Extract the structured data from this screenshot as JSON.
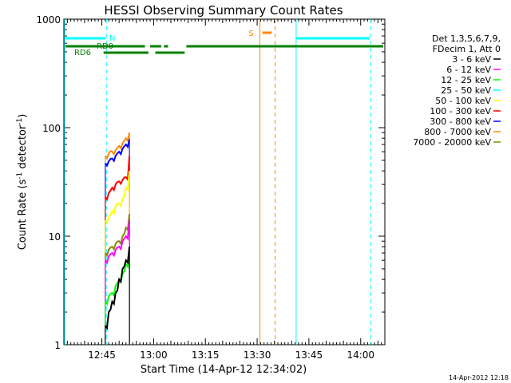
{
  "chart_data": {
    "type": "line",
    "title": "HESSI Observing Summary Count Rates",
    "xlabel": "Start Time (14-Apr-12 12:34:02)",
    "ylabel_main": "Count Rate (s",
    "ylabel_sup1": "-1",
    "ylabel_mid": " detector",
    "ylabel_sup2": "-1",
    "ylabel_end": ")",
    "yscale": "log",
    "ylim": [
      1,
      1000
    ],
    "xlim_minutes": [
      0,
      93
    ],
    "x_ticks": [
      {
        "label": "12:45",
        "t": 11
      },
      {
        "label": "13:00",
        "t": 26
      },
      {
        "label": "13:15",
        "t": 41
      },
      {
        "label": "13:30",
        "t": 56
      },
      {
        "label": "13:45",
        "t": 71
      },
      {
        "label": "14:00",
        "t": 86
      }
    ],
    "y_ticks": [
      {
        "label": "1",
        "v": 1
      },
      {
        "label": "10",
        "v": 10
      },
      {
        "label": "100",
        "v": 100
      },
      {
        "label": "1000",
        "v": 1000
      }
    ],
    "legend": {
      "header": [
        "Det 1,3,5,6,7,9,",
        "FDecim 1, Att 0"
      ],
      "entries": [
        {
          "label": "3 - 6 keV",
          "color": "#000000"
        },
        {
          "label": "6 - 12 keV",
          "color": "#ff00ff"
        },
        {
          "label": "12 - 25 keV",
          "color": "#00ff00"
        },
        {
          "label": "25 - 50 keV",
          "color": "#00ffff"
        },
        {
          "label": "50 - 100 keV",
          "color": "#ffff00"
        },
        {
          "label": "100 - 300 keV",
          "color": "#ff0000"
        },
        {
          "label": "300 - 800 keV",
          "color": "#0000ff"
        },
        {
          "label": "800 - 7000 keV",
          "color": "#ff8800"
        },
        {
          "label": "7000 - 20000 keV",
          "color": "#888800"
        }
      ]
    },
    "annotations": {
      "N": {
        "label": "N",
        "color": "#00ffff"
      },
      "RD0": {
        "label": "RD0",
        "color": "#008000"
      },
      "RD6": {
        "label": "RD6",
        "color": "#008000"
      },
      "S": {
        "label": "S",
        "color": "#ff8800"
      }
    },
    "series": [
      {
        "color": "#ff8800",
        "x": [
          12,
          13,
          14,
          15,
          16,
          17,
          18,
          19
        ],
        "y": [
          55,
          58,
          60,
          62,
          68,
          72,
          80,
          90
        ]
      },
      {
        "color": "#0000ff",
        "x": [
          12,
          13,
          14,
          15,
          16,
          17,
          18,
          19
        ],
        "y": [
          47,
          49,
          52,
          55,
          60,
          64,
          70,
          78
        ]
      },
      {
        "color": "#ff0000",
        "x": [
          12,
          13,
          14,
          15,
          16,
          17,
          18,
          19
        ],
        "y": [
          23,
          25,
          28,
          30,
          32,
          33,
          35,
          55
        ]
      },
      {
        "color": "#ffff00",
        "x": [
          12,
          13,
          14,
          15,
          16,
          17,
          18,
          19
        ],
        "y": [
          14,
          15,
          17,
          19,
          20,
          22,
          28,
          40
        ]
      },
      {
        "color": "#888800",
        "x": [
          12,
          13,
          14,
          15,
          16,
          17,
          18,
          19
        ],
        "y": [
          7,
          7.5,
          8,
          8.5,
          9,
          10,
          12,
          16
        ]
      },
      {
        "color": "#ff00ff",
        "x": [
          12,
          13,
          14,
          15,
          16,
          17,
          18,
          19
        ],
        "y": [
          6,
          6.5,
          7,
          7.5,
          8,
          9,
          10,
          14
        ]
      },
      {
        "color": "#00ff00",
        "x": [
          12,
          13,
          14,
          15,
          16,
          17,
          18,
          19
        ],
        "y": [
          2.5,
          2.8,
          3,
          3.5,
          4,
          4.5,
          5.5,
          7
        ]
      },
      {
        "color": "#000000",
        "x": [
          12,
          13,
          14,
          15,
          16,
          17,
          18,
          19
        ],
        "y": [
          1.5,
          2,
          2.5,
          3,
          4,
          5,
          6,
          8
        ]
      }
    ],
    "footer_date": "14-Apr-2012 12:18"
  }
}
